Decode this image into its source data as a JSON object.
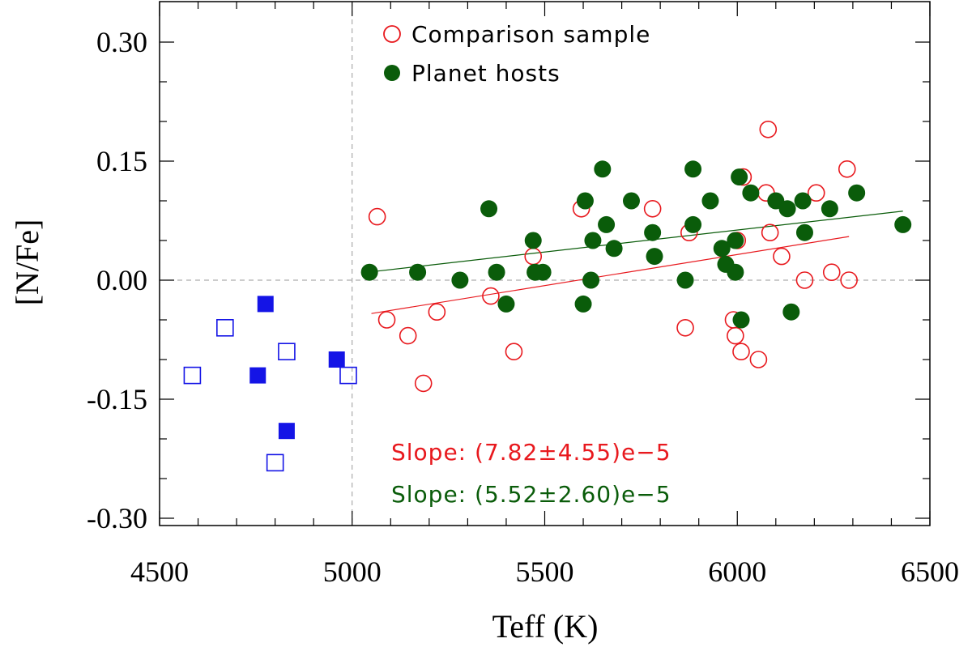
{
  "chart_data": {
    "type": "scatter",
    "title": "",
    "xlabel": "Teff (K)",
    "ylabel": "[N/Fe]",
    "xlim": [
      4500,
      6500
    ],
    "ylim": [
      -0.3,
      0.3
    ],
    "xticks": [
      4500,
      5000,
      5500,
      6000,
      6500
    ],
    "xtick_labels": [
      "4500",
      "5000",
      "5500",
      "6000",
      "6500"
    ],
    "yticks": [
      0.3,
      0.15,
      0.0,
      -0.15,
      -0.3
    ],
    "ytick_labels": [
      "0.30",
      "0.15",
      "0.00",
      "-0.15",
      "-0.30"
    ],
    "grid": false,
    "reference_lines": {
      "vertical_x": 5000,
      "horizontal_y": 0.0
    },
    "legend": {
      "position": "top-center",
      "entries": [
        {
          "label": "Comparison sample",
          "marker": "open-circle",
          "color": "#e8191e"
        },
        {
          "label": "Planet hosts",
          "marker": "filled-circle",
          "color": "#0a5c0a"
        }
      ]
    },
    "annotations": [
      {
        "text": "Slope: (7.82±4.55)e−5",
        "color": "#e8191e"
      },
      {
        "text": "Slope: (5.52±2.60)e−5",
        "color": "#0a5c0a"
      }
    ],
    "fits": [
      {
        "name": "Comparison sample fit",
        "color": "#e8191e",
        "x": [
          5050,
          6290
        ],
        "y": [
          -0.042,
          0.055
        ]
      },
      {
        "name": "Planet hosts fit",
        "color": "#0a5c0a",
        "x": [
          5040,
          6430
        ],
        "y": [
          0.01,
          0.087
        ]
      }
    ],
    "series": [
      {
        "name": "Comparison sample",
        "marker": "open-circle",
        "color": "#e8191e",
        "points": [
          [
            5065,
            0.08
          ],
          [
            5090,
            -0.05
          ],
          [
            5145,
            -0.07
          ],
          [
            5185,
            -0.13
          ],
          [
            5220,
            -0.04
          ],
          [
            5360,
            -0.02
          ],
          [
            5420,
            -0.09
          ],
          [
            5470,
            0.03
          ],
          [
            5595,
            0.09
          ],
          [
            5780,
            0.09
          ],
          [
            5865,
            -0.06
          ],
          [
            5875,
            0.06
          ],
          [
            5990,
            -0.05
          ],
          [
            5995,
            -0.07
          ],
          [
            6000,
            0.05
          ],
          [
            6010,
            -0.09
          ],
          [
            6015,
            0.13
          ],
          [
            6055,
            -0.1
          ],
          [
            6075,
            0.11
          ],
          [
            6080,
            0.19
          ],
          [
            6085,
            0.06
          ],
          [
            6115,
            0.03
          ],
          [
            6175,
            0.0
          ],
          [
            6205,
            0.11
          ],
          [
            6245,
            0.01
          ],
          [
            6285,
            0.14
          ],
          [
            6290,
            0.0
          ]
        ]
      },
      {
        "name": "Planet hosts",
        "marker": "filled-circle",
        "color": "#0a5c0a",
        "points": [
          [
            5045,
            0.01
          ],
          [
            5170,
            0.01
          ],
          [
            5280,
            0.0
          ],
          [
            5355,
            0.09
          ],
          [
            5375,
            0.01
          ],
          [
            5400,
            -0.03
          ],
          [
            5470,
            0.05
          ],
          [
            5475,
            0.01
          ],
          [
            5495,
            0.01
          ],
          [
            5600,
            -0.03
          ],
          [
            5605,
            0.1
          ],
          [
            5620,
            0.0
          ],
          [
            5625,
            0.05
          ],
          [
            5650,
            0.14
          ],
          [
            5660,
            0.07
          ],
          [
            5680,
            0.04
          ],
          [
            5725,
            0.1
          ],
          [
            5780,
            0.06
          ],
          [
            5785,
            0.03
          ],
          [
            5865,
            0.0
          ],
          [
            5885,
            0.14
          ],
          [
            5885,
            0.07
          ],
          [
            5930,
            0.1
          ],
          [
            5960,
            0.04
          ],
          [
            5970,
            0.02
          ],
          [
            5995,
            0.05
          ],
          [
            5995,
            0.01
          ],
          [
            6005,
            0.13
          ],
          [
            6010,
            -0.05
          ],
          [
            6035,
            0.11
          ],
          [
            6100,
            0.1
          ],
          [
            6130,
            0.09
          ],
          [
            6140,
            -0.04
          ],
          [
            6170,
            0.1
          ],
          [
            6175,
            0.06
          ],
          [
            6240,
            0.09
          ],
          [
            6310,
            0.11
          ],
          [
            6430,
            0.07
          ]
        ]
      },
      {
        "name": "Cool dwarfs (open)",
        "marker": "open-square",
        "color": "#1414e6",
        "points": [
          [
            4585,
            -0.12
          ],
          [
            4670,
            -0.06
          ],
          [
            4800,
            -0.23
          ],
          [
            4830,
            -0.09
          ],
          [
            4990,
            -0.12
          ]
        ]
      },
      {
        "name": "Cool dwarfs (filled)",
        "marker": "filled-square",
        "color": "#1414e6",
        "points": [
          [
            4755,
            -0.12
          ],
          [
            4775,
            -0.03
          ],
          [
            4830,
            -0.19
          ],
          [
            4960,
            -0.1
          ]
        ]
      }
    ]
  }
}
